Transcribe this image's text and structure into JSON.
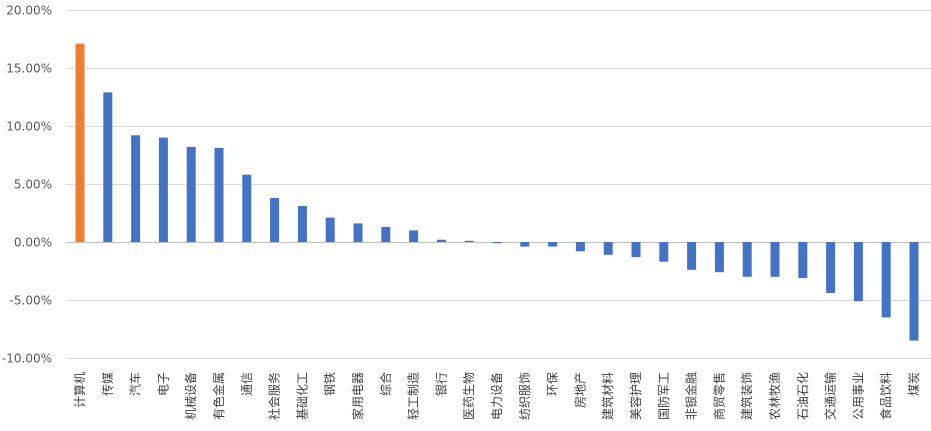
{
  "chart_data": {
    "type": "bar",
    "title": "",
    "xlabel": "",
    "ylabel": "",
    "ylim": [
      -0.1,
      0.2
    ],
    "yticks": [
      "20.00%",
      "15.00%",
      "10.00%",
      "5.00%",
      "0.00%",
      "-5.00%",
      "-10.00%"
    ],
    "grid": true,
    "legend": "none",
    "colors": {
      "default": "#4472c4",
      "highlight": "#ed7d31"
    },
    "highlight_index": 0,
    "categories": [
      "计算机",
      "传媒",
      "汽车",
      "电子",
      "机械设备",
      "有色金属",
      "通信",
      "社会服务",
      "基础化工",
      "钢铁",
      "家用电器",
      "综合",
      "轻工制造",
      "银行",
      "医药生物",
      "电力设备",
      "纺织服饰",
      "环保",
      "房地产",
      "建筑材料",
      "美容护理",
      "国防军工",
      "非银金融",
      "商贸零售",
      "建筑装饰",
      "农林牧渔",
      "石油石化",
      "交通运输",
      "公用事业",
      "食品饮料",
      "煤炭"
    ],
    "values": [
      0.171,
      0.129,
      0.092,
      0.09,
      0.082,
      0.081,
      0.058,
      0.038,
      0.031,
      0.021,
      0.016,
      0.013,
      0.01,
      0.002,
      0.001,
      -0.001,
      -0.004,
      -0.004,
      -0.008,
      -0.011,
      -0.013,
      -0.017,
      -0.024,
      -0.026,
      -0.03,
      -0.03,
      -0.031,
      -0.044,
      -0.051,
      -0.065,
      -0.085
    ]
  }
}
